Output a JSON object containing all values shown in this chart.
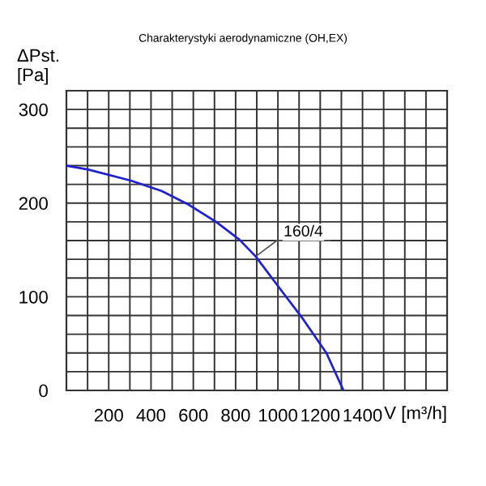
{
  "chart_data": {
    "type": "line",
    "title": "Charakterystyki aerodynamiczne (OH,EX)",
    "xlabel": "V [m³/h]",
    "ylabel": "ΔPst.\n[Pa]",
    "x": [
      0,
      100,
      305,
      450,
      573,
      714,
      818,
      895,
      1015,
      1113,
      1229,
      1310
    ],
    "series": [
      {
        "color": "#2222cc",
        "values": [
          240,
          236,
          224,
          213,
          199,
          179,
          161,
          143,
          107,
          78,
          40,
          0
        ]
      }
    ],
    "annotations": [
      {
        "text": "160/4",
        "x": 895,
        "y": 143
      }
    ],
    "xlim": [
      0,
      1800
    ],
    "ylim": [
      0,
      320
    ],
    "xticks": [
      {
        "value": 0,
        "label": null
      },
      {
        "value": 100,
        "label": null
      },
      200,
      {
        "value": 300,
        "label": null
      },
      400,
      {
        "value": 500,
        "label": null
      },
      600,
      {
        "value": 700,
        "label": null
      },
      800,
      {
        "value": 900,
        "label": null
      },
      1000,
      {
        "value": 1100,
        "label": null
      },
      1200,
      {
        "value": 1300,
        "label": null
      },
      1400,
      {
        "value": 1500,
        "label": null
      },
      {
        "value": 1600,
        "label": null
      },
      {
        "value": 1700,
        "label": null
      },
      {
        "value": 1800,
        "label": null
      }
    ],
    "yticks": [
      0,
      {
        "value": 20,
        "label": null
      },
      {
        "value": 40,
        "label": null
      },
      {
        "value": 60,
        "label": null
      },
      {
        "value": 80,
        "label": null
      },
      100,
      {
        "value": 120,
        "label": null
      },
      {
        "value": 140,
        "label": null
      },
      {
        "value": 160,
        "label": null
      },
      {
        "value": 180,
        "label": null
      },
      200,
      {
        "value": 220,
        "label": null
      },
      {
        "value": 240,
        "label": null
      },
      {
        "value": 260,
        "label": null
      },
      {
        "value": 280,
        "label": null
      },
      300,
      {
        "value": 320,
        "label": null
      }
    ],
    "grid": true,
    "marker": "none",
    "line_style": "solid"
  }
}
